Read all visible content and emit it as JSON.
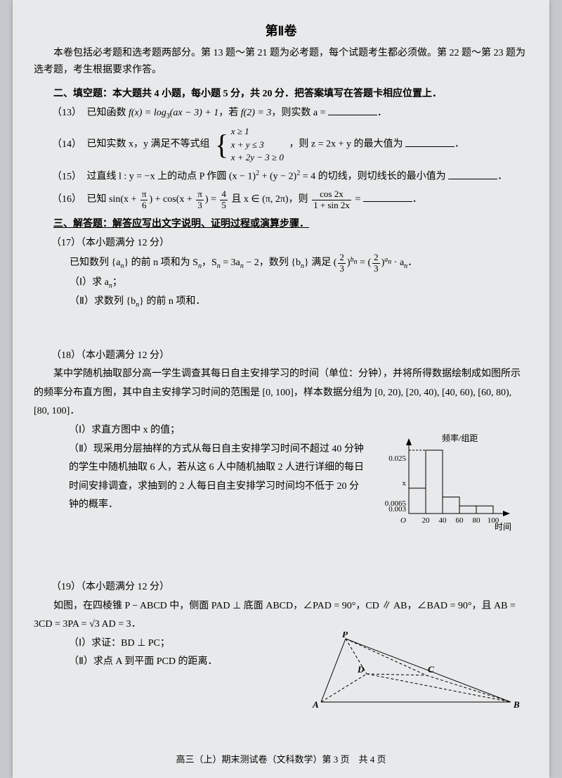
{
  "title": "第Ⅱ卷",
  "intro": "本卷包括必考题和选考题两部分。第 13 题～第 21 题为必考题，每个试题考生都必须做。第 22 题～第 23 题为选考题，考生根据要求作答。",
  "section2": "二、填空题：本大题共 4 小题，每小题 5 分，共 20 分．把答案填写在答题卡相应位置上．",
  "q13": {
    "num": "（13）",
    "pre": "已知函数 ",
    "func": "f(x) = log",
    "funcSub": "3",
    "funcArg": "(ax − 3) + 1",
    "mid": "，若 ",
    "cond": "f(2) = 3",
    "post": "，则实数 a = ",
    "end": "．"
  },
  "q14": {
    "num": "（14）",
    "pre": "已知实数 x，y 满足不等式组 ",
    "line1": "x ≥ 1",
    "line2": "x + y ≤ 3",
    "line3": "x + 2y − 3 ≥ 0",
    "post": "，则 z = 2x + y 的最大值为 ",
    "end": "．"
  },
  "q15": {
    "num": "（15）",
    "text1": "过直线 l : y = −x 上的动点 P 作圆 (x − 1)",
    "sq1": "2",
    "text2": " + (y − 2)",
    "sq2": "2",
    "text3": " = 4 的切线，则切线长的最小值为 ",
    "end": "．"
  },
  "q16": {
    "num": "（16）",
    "pre": "已知 sin(x + ",
    "frac1top": "π",
    "frac1bot": "6",
    "mid1": ") + cos(x + ",
    "frac2top": "π",
    "frac2bot": "3",
    "mid2": ") = ",
    "frac3top": "4",
    "frac3bot": "5",
    "mid3": " 且 x ∈ (π, 2π)，则 ",
    "frac4top": "cos 2x",
    "frac4bot": "1 + sin 2x",
    "post": " = ",
    "end": "．"
  },
  "section3": "三、解答题：解答应写出文字说明、证明过程或演算步骤．",
  "q17": {
    "header": "（17）（本小题满分 12 分）",
    "line1a": "已知数列 {a",
    "line1sub": "n",
    "line1b": "} 的前 n 项和为 S",
    "line1sub2": "n",
    "line1c": "，S",
    "line1sub3": "n",
    "line1d": " = 3a",
    "line1sub4": "n",
    "line1e": " − 2，数列 {b",
    "line1sub5": "n",
    "line1f": "} 满足 (",
    "fracAtop": "2",
    "fracAbot": "3",
    "line1g": ")",
    "expB": "b",
    "expBsub": "n",
    "line1h": " = (",
    "fracBtop": "2",
    "fracBbot": "3",
    "line1i": ")",
    "expA": "a",
    "expAsub": "n",
    "line1j": " · a",
    "line1sub6": "n",
    "line1k": "．",
    "part1": "（Ⅰ）求 a",
    "part1sub": "n",
    "part1end": "；",
    "part2": "（Ⅱ）求数列 {b",
    "part2sub": "n",
    "part2end": "} 的前 n 项和．"
  },
  "q18": {
    "header": "（18）（本小题满分 12 分）",
    "body1": "某中学随机抽取部分高一学生调查其每日自主安排学习的时间（单位：分钟），并将所得数据绘制成如图所示的频率分布直方图，其中自主安排学习时间的范围是 [0, 100]，样本数据分组为 [0, 20), [20, 40), [40, 60), [60, 80), [80, 100]．",
    "part1": "（Ⅰ）求直方图中 x 的值；",
    "part2": "（Ⅱ）现采用分层抽样的方式从每日自主安排学习时间不超过 40 分钟的学生中随机抽取 6 人，若从这 6 人中随机抽取 2 人进行详细的每日时间安排调查，求抽到的 2 人每日自主安排学习时间均不低于 20 分钟的概率．"
  },
  "chart": {
    "ylabel": "频率/组距",
    "xlabel": "时间",
    "xticks": [
      "O",
      "20",
      "40",
      "60",
      "80",
      "100"
    ],
    "yticks": [
      {
        "label": "0.025",
        "y": 25
      },
      {
        "label": "x",
        "y": 60
      },
      {
        "label": "0.0065",
        "y": 89
      },
      {
        "label": "0.003",
        "y": 97
      }
    ],
    "bars": [
      {
        "x": 0,
        "h": 0.4
      },
      {
        "x": 1,
        "h": 1.0
      },
      {
        "x": 2,
        "h": 0.26
      },
      {
        "x": 3,
        "h": 0.12
      },
      {
        "x": 4,
        "h": 0.12
      }
    ],
    "axis_color": "#000",
    "bar_fill": "none",
    "bar_stroke": "#000"
  },
  "q19": {
    "header": "（19）（本小题满分 12 分）",
    "body": "如图，在四棱锥 P − ABCD 中，侧面 PAD ⊥ 底面 ABCD，∠PAD = 90°，CD ∥ AB，∠BAD = 90°，且 AB = 3CD = 3PA = √3 AD = 3．",
    "part1": "（Ⅰ）求证：BD ⊥ PC；",
    "part2": "（Ⅱ）求点 A 到平面 PCD 的距离．",
    "labels": {
      "P": "P",
      "A": "A",
      "B": "B",
      "C": "C",
      "D": "D"
    }
  },
  "footer": "高三（上）期末测试卷（文科数学）第 3 页　共 4 页"
}
